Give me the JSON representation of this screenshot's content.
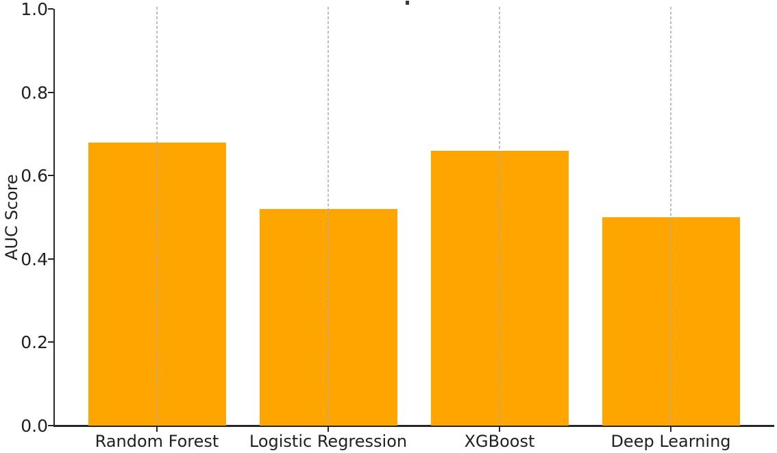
{
  "chart_data": {
    "type": "bar",
    "title": "",
    "xlabel": "",
    "ylabel": "AUC Score",
    "categories": [
      "Random Forest",
      "Logistic Regression",
      "XGBoost",
      "Deep Learning"
    ],
    "values": [
      0.68,
      0.52,
      0.66,
      0.5
    ],
    "ylim": [
      0.0,
      1.0
    ],
    "yticks": [
      0.0,
      0.2,
      0.4,
      0.6,
      0.8,
      1.0
    ],
    "ytick_labels": [
      "0.0",
      "0.2",
      "0.4",
      "0.6",
      "0.8",
      "1.0"
    ],
    "bar_color": "#FFA500",
    "gridline_color": "#aaaaaa",
    "axis_color": "#262626",
    "grid": "vertical-dashed-at-bar-centers",
    "legend_position": "none",
    "spines": [
      "left",
      "bottom"
    ],
    "notes": "tiny dark remnant of cropped title at top center"
  }
}
